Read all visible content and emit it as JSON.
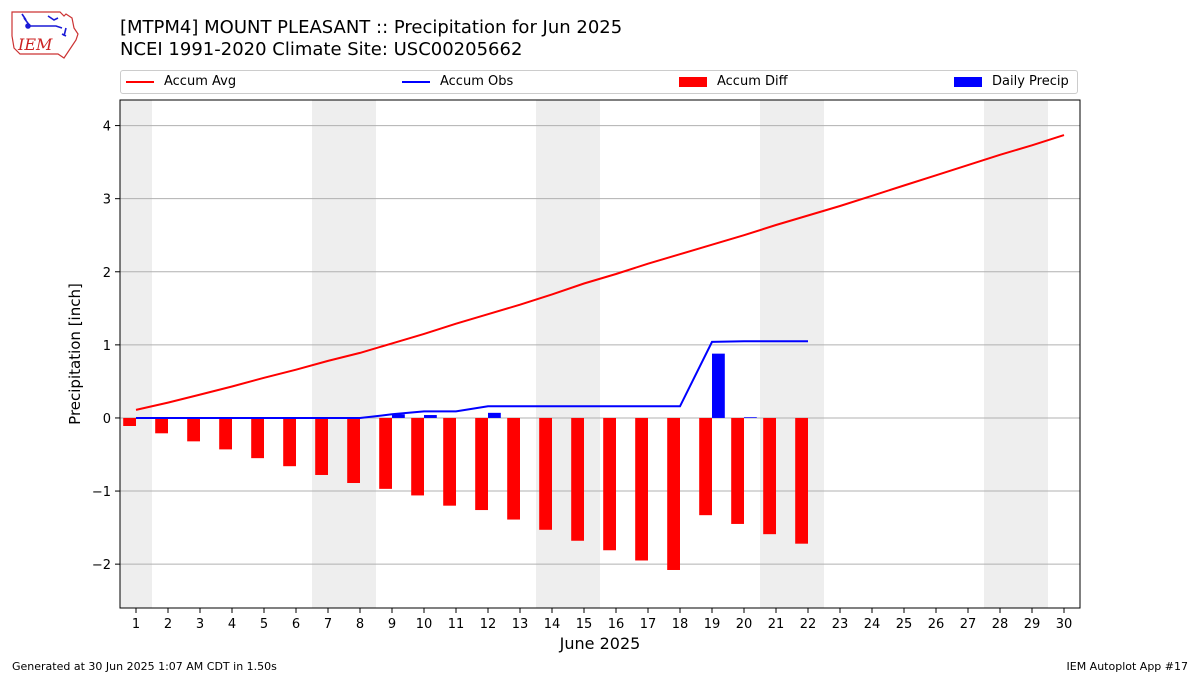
{
  "header": {
    "title_line1": "[MTPM4] MOUNT PLEASANT :: Precipitation for Jun 2025",
    "title_line2": "NCEI 1991-2020 Climate Site: USC00205662",
    "logo_text": "IEM"
  },
  "legend": {
    "items": [
      "Accum Avg",
      "Accum Obs",
      "Accum Diff",
      "Daily Precip"
    ],
    "placement": "top, above plot, expanded"
  },
  "footer": {
    "left": "Generated at 30 Jun 2025 1:07 AM CDT in 1.50s",
    "right": "IEM Autoplot App #17"
  },
  "chart_data": {
    "type": "bar",
    "title": "[MTPM4] MOUNT PLEASANT :: Precipitation for Jun 2025",
    "subtitle": "NCEI 1991-2020 Climate Site: USC00205662",
    "xlabel": "June 2025",
    "ylabel": "Precipitation [inch]",
    "ylim": [
      -2.6,
      4.35
    ],
    "xlim": [
      0.5,
      30.5
    ],
    "x": [
      1,
      2,
      3,
      4,
      5,
      6,
      7,
      8,
      9,
      10,
      11,
      12,
      13,
      14,
      15,
      16,
      17,
      18,
      19,
      20,
      21,
      22,
      23,
      24,
      25,
      26,
      27,
      28,
      29,
      30
    ],
    "x_tick_labels": [
      "1",
      "2",
      "3",
      "4",
      "5",
      "6",
      "7",
      "8",
      "9",
      "10",
      "11",
      "12",
      "13",
      "14",
      "15",
      "16",
      "17",
      "18",
      "19",
      "20",
      "21",
      "22",
      "23",
      "24",
      "25",
      "26",
      "27",
      "28",
      "29",
      "30"
    ],
    "y_ticks": [
      -2,
      -1,
      0,
      1,
      2,
      3,
      4
    ],
    "y_tick_labels": [
      "−2",
      "−1",
      "0",
      "1",
      "2",
      "3",
      "4"
    ],
    "weekend_shading": [
      [
        0.5,
        1.5
      ],
      [
        6.5,
        8.5
      ],
      [
        13.5,
        15.5
      ],
      [
        20.5,
        22.5
      ],
      [
        27.5,
        29.5
      ]
    ],
    "grid": "horizontal",
    "series": [
      {
        "name": "Accum Avg",
        "kind": "line",
        "color": "#ff0000",
        "values": [
          0.11,
          0.21,
          0.32,
          0.43,
          0.55,
          0.66,
          0.78,
          0.89,
          1.02,
          1.15,
          1.29,
          1.42,
          1.55,
          1.69,
          1.84,
          1.97,
          2.11,
          2.24,
          2.37,
          2.5,
          2.64,
          2.77,
          2.9,
          3.04,
          3.18,
          3.32,
          3.46,
          3.6,
          3.73,
          3.87
        ]
      },
      {
        "name": "Accum Obs",
        "kind": "line",
        "color": "#0000ff",
        "values": [
          0,
          0,
          0,
          0,
          0,
          0,
          0,
          0,
          0.05,
          0.09,
          0.09,
          0.16,
          0.16,
          0.16,
          0.16,
          0.16,
          0.16,
          0.16,
          1.04,
          1.05,
          1.05,
          1.05,
          null,
          null,
          null,
          null,
          null,
          null,
          null,
          null
        ]
      },
      {
        "name": "Accum Diff",
        "kind": "bar",
        "color": "#ff0000",
        "offset": -0.2,
        "values": [
          -0.11,
          -0.21,
          -0.32,
          -0.43,
          -0.55,
          -0.66,
          -0.78,
          -0.89,
          -0.97,
          -1.06,
          -1.2,
          -1.26,
          -1.39,
          -1.53,
          -1.68,
          -1.81,
          -1.95,
          -2.08,
          -1.33,
          -1.45,
          -1.59,
          -1.72,
          null,
          null,
          null,
          null,
          null,
          null,
          null,
          null
        ]
      },
      {
        "name": "Daily Precip",
        "kind": "bar",
        "color": "#0000ff",
        "offset": 0.2,
        "values": [
          0,
          0,
          0,
          0,
          0,
          0,
          0,
          0,
          0.05,
          0.04,
          0,
          0.07,
          0,
          0,
          0,
          0,
          0,
          0,
          0.88,
          0.01,
          0,
          0,
          null,
          null,
          null,
          null,
          null,
          null,
          null,
          null
        ]
      }
    ]
  }
}
